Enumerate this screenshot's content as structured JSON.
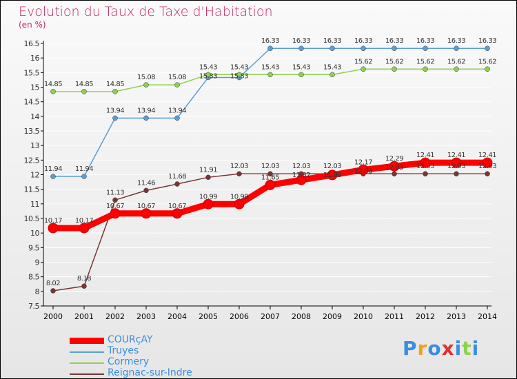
{
  "chart_data": {
    "type": "line",
    "title": "Evolution du Taux de Taxe d'Habitation",
    "ylabel": "(en %)",
    "xlabel": "",
    "ylim": [
      7.5,
      16.5
    ],
    "ytick_step": 0.5,
    "x": [
      "2000",
      "2001",
      "2002",
      "2003",
      "2004",
      "2005",
      "2006",
      "2007",
      "2008",
      "2009",
      "2010",
      "2011",
      "2012",
      "2013",
      "2014"
    ],
    "series": [
      {
        "name": "Truyes",
        "color": "#5a9fd4",
        "values": [
          11.94,
          11.94,
          13.94,
          13.94,
          13.94,
          15.33,
          15.33,
          16.33,
          16.33,
          16.33,
          16.33,
          16.33,
          16.33,
          16.33,
          16.33
        ]
      },
      {
        "name": "Cormery",
        "color": "#8fd14f",
        "values": [
          14.85,
          14.85,
          14.85,
          15.08,
          15.08,
          15.43,
          15.43,
          15.43,
          15.43,
          15.43,
          15.62,
          15.62,
          15.62,
          15.62,
          15.62
        ]
      },
      {
        "name": "Reignac-sur-Indre",
        "color": "#7a3434",
        "values": [
          8.02,
          8.18,
          11.13,
          11.46,
          11.68,
          11.91,
          12.03,
          12.03,
          12.03,
          12.03,
          12.03,
          12.03,
          12.03,
          12.03,
          12.03
        ]
      },
      {
        "name": "COURçAY",
        "color": "#ff0000",
        "values": [
          10.17,
          10.17,
          10.67,
          10.67,
          10.67,
          10.99,
          10.99,
          11.65,
          11.82,
          11.99,
          12.17,
          12.29,
          12.41,
          12.41,
          12.41
        ]
      }
    ],
    "legend_order": [
      "COURçAY",
      "Truyes",
      "Cormery",
      "Reignac-sur-Indre"
    ],
    "legend_placement": "bottom-left",
    "grid": true
  },
  "logo": "Proxiti"
}
